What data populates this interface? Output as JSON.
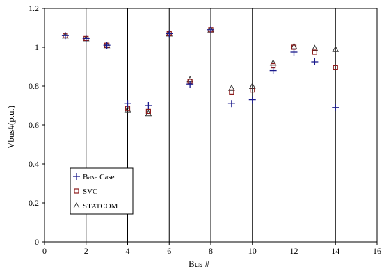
{
  "chart_data": {
    "type": "scatter",
    "title": "",
    "xlabel": "Bus #",
    "ylabel": "Vbus#(p.u.)",
    "xlim": [
      0,
      16
    ],
    "ylim": [
      0,
      1.2
    ],
    "xticks": [
      "0",
      "2",
      "4",
      "6",
      "8",
      "10",
      "12",
      "14",
      "16"
    ],
    "yticks": [
      "0",
      "0.2",
      "0.4",
      "0.6",
      "0.8",
      "1",
      "1.2"
    ],
    "grid": "vertical",
    "legend_position": "bottom-left",
    "series": [
      {
        "name": "Base Case",
        "marker": "plus",
        "color": "#1a1a8c",
        "x": [
          1,
          2,
          3,
          4,
          5,
          6,
          7,
          8,
          9,
          10,
          11,
          12,
          13,
          14
        ],
        "y": [
          1.06,
          1.045,
          1.01,
          0.71,
          0.7,
          1.07,
          0.81,
          1.09,
          0.71,
          0.73,
          0.88,
          0.975,
          0.925,
          0.69
        ]
      },
      {
        "name": "SVC",
        "marker": "square",
        "color": "#8b1a1a",
        "x": [
          1,
          2,
          3,
          4,
          5,
          6,
          7,
          8,
          9,
          10,
          11,
          12,
          13,
          14
        ],
        "y": [
          1.06,
          1.045,
          1.01,
          0.685,
          0.67,
          1.07,
          0.825,
          1.09,
          0.77,
          0.78,
          0.905,
          1.0,
          0.975,
          0.895
        ]
      },
      {
        "name": "STATCOM",
        "marker": "triangle",
        "color": "#333333",
        "x": [
          1,
          2,
          3,
          4,
          5,
          6,
          7,
          8,
          9,
          10,
          11,
          12,
          13,
          14
        ],
        "y": [
          1.06,
          1.045,
          1.01,
          0.68,
          0.66,
          1.07,
          0.835,
          1.09,
          0.79,
          0.8,
          0.92,
          1.005,
          0.995,
          0.99
        ]
      }
    ]
  }
}
